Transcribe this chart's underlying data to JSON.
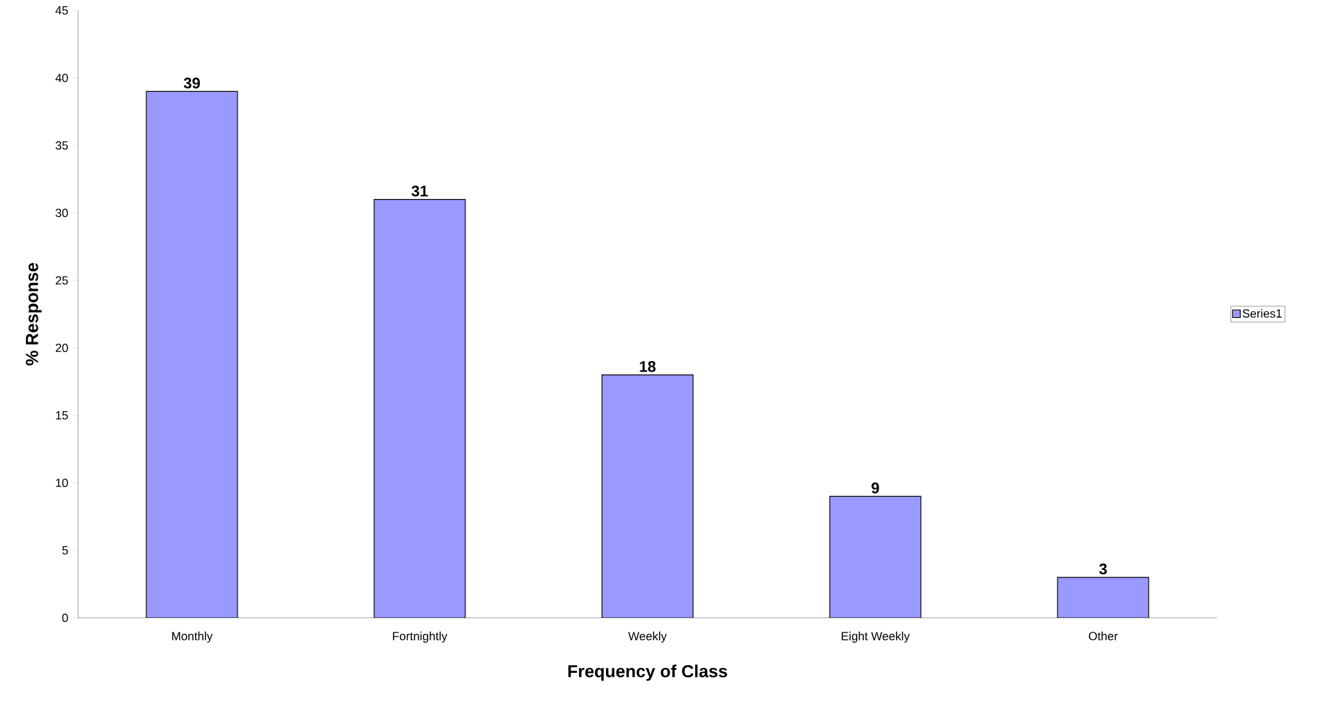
{
  "chart_data": {
    "type": "bar",
    "xlabel": "Frequency of Class",
    "ylabel": "% Response",
    "categories": [
      "Monthly",
      "Fortnightly",
      "Weekly",
      "Eight Weekly",
      "Other"
    ],
    "series": [
      {
        "name": "Series1",
        "color": "#9999ff",
        "values": [
          39,
          31,
          18,
          9,
          3
        ]
      }
    ],
    "ylim": [
      0,
      45
    ],
    "yticks": [
      0,
      5,
      10,
      15,
      20,
      25,
      30,
      35,
      40,
      45
    ],
    "data_labels": true,
    "legend": "right",
    "grid": false
  }
}
